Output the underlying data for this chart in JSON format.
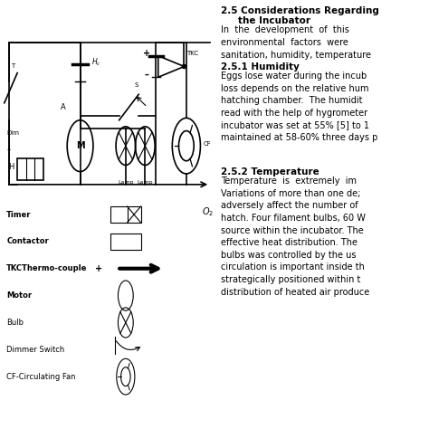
{
  "bg_color": "#ffffff",
  "legend_items": [
    "Timer",
    "Contactor",
    "TKCThermo-couple",
    "Motor",
    "Bulb",
    "Dimmer Switch",
    "CF-Circulating Fan"
  ],
  "right_text": {
    "s25_title1": "2.5 Considerations Regarding",
    "s25_title2": "    the Incubator",
    "s25_body": "In  the  development  of  this\nenvironmental  factors  were\nsanitation, humidity, temperature",
    "s251_title": "2.5.1 Humidity",
    "s251_body": "Eggs lose water during the incub\nloss depends on the relative hum\nhatching chamber.  The humidit\nread with the help of hygrometer\nincubator was set at 55% [5] to 1\nmaintained at 58-60% three days p",
    "s252_title": "2.5.2 Temperature",
    "s252_body": "Temperature  is  extremely  im\nVariations of more than one de;\nadversely affect the number of\nhatch. Four filament bulbs, 60 W\nsource within the incubator. The\neffective heat distribution. The\nbulbs was controlled by the us\ncirculation is important inside th\nstrategically positioned within t\ndistribution of heated air produce"
  }
}
